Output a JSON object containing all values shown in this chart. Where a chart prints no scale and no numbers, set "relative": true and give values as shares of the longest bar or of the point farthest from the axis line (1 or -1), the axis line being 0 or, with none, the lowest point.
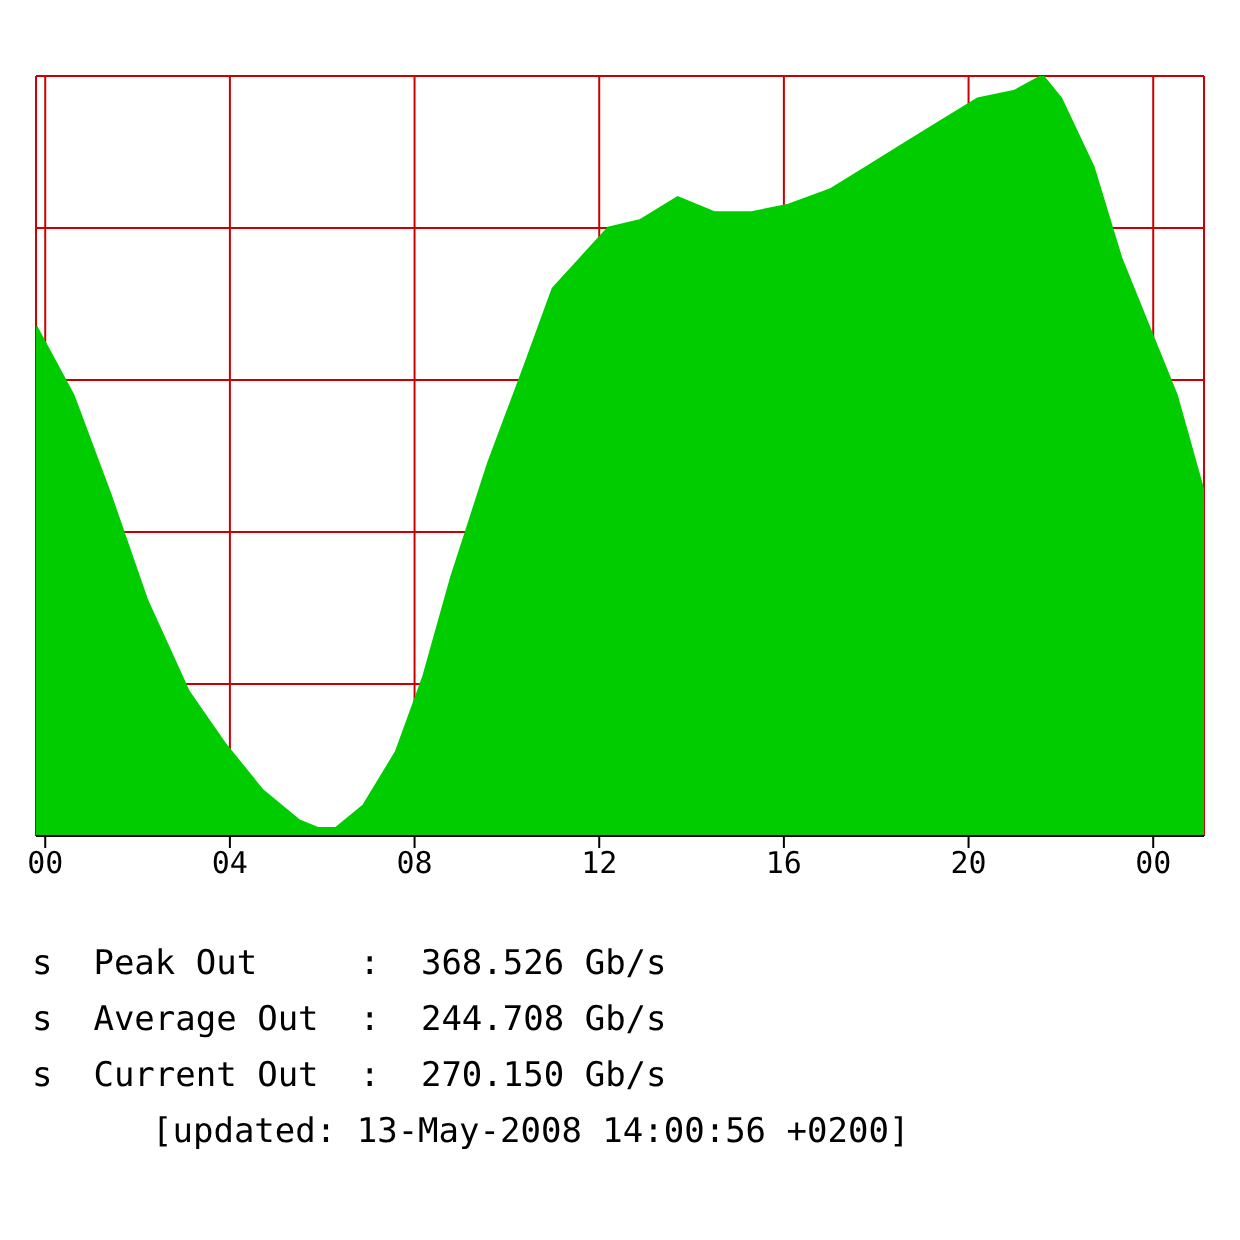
{
  "chart_data": {
    "type": "area",
    "relative": true,
    "title": "[updated: 13-May-2008 14:00:56 +0200]",
    "annotations": [
      "s  Peak Out     :  368.526 Gb/s",
      "s  Average Out  :  244.708 Gb/s",
      "s  Current Out  :  270.150 Gb/s"
    ],
    "x": [
      -0.2,
      0.6,
      1.4,
      2.2,
      3.1,
      3.9,
      4.7,
      5.5,
      5.9,
      6.3,
      6.9,
      7.6,
      8.2,
      8.8,
      9.6,
      10.4,
      11.0,
      11.6,
      12.2,
      12.9,
      13.7,
      14.5,
      15.3,
      16.1,
      17.0,
      17.8,
      18.6,
      19.4,
      20.2,
      21.0,
      21.6,
      22.0,
      22.7,
      23.3,
      23.9,
      24.5,
      25.1
    ],
    "series": [
      {
        "color": "#00cc00",
        "values": [
          0.67,
          0.58,
          0.45,
          0.31,
          0.19,
          0.12,
          0.06,
          0.02,
          0.01,
          0.01,
          0.04,
          0.11,
          0.21,
          0.34,
          0.49,
          0.62,
          0.72,
          0.76,
          0.8,
          0.81,
          0.84,
          0.82,
          0.82,
          0.83,
          0.85,
          0.88,
          0.91,
          0.94,
          0.97,
          0.98,
          1,
          0.97,
          0.88,
          0.76,
          0.67,
          0.58,
          0.45
        ]
      }
    ],
    "xlim": [
      -0.2,
      25.1
    ],
    "xticks": [
      {
        "value": 0,
        "label": "00"
      },
      {
        "value": 4,
        "label": "04"
      },
      {
        "value": 8,
        "label": "08"
      },
      {
        "value": 12,
        "label": "12"
      },
      {
        "value": 16,
        "label": "16"
      },
      {
        "value": 20,
        "label": "20"
      },
      {
        "value": 24,
        "label": "00"
      }
    ],
    "grid": true
  }
}
